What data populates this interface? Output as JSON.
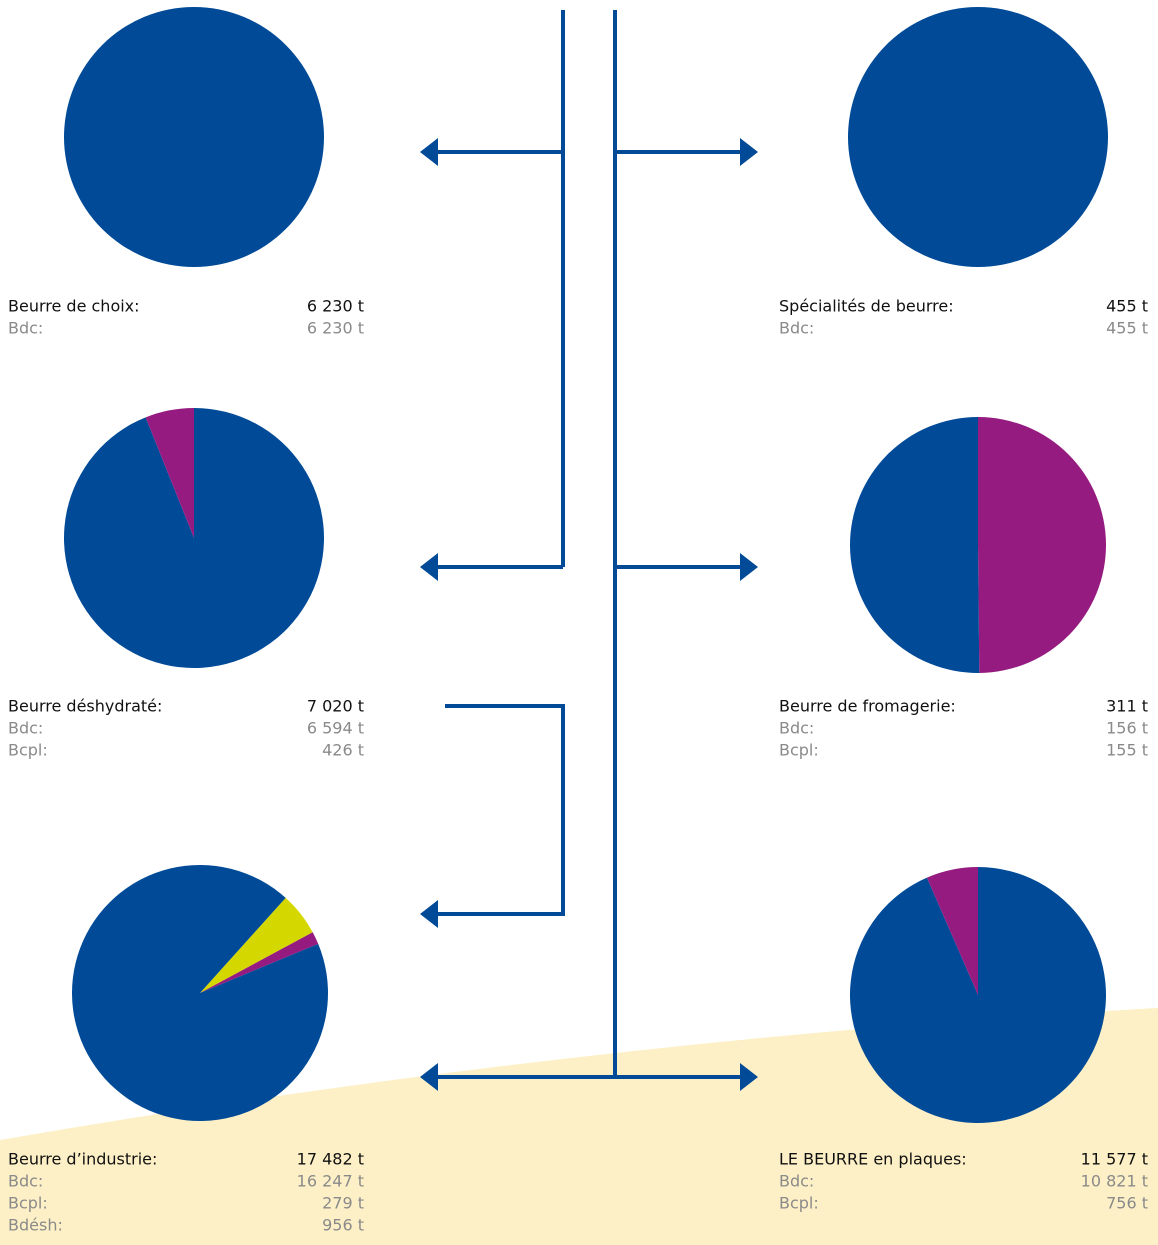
{
  "chart_data": [
    {
      "type": "pie",
      "title": "Beurre de choix:",
      "total": {
        "value": 6230,
        "label": "6 230 t"
      },
      "categories": [
        "Bdc:"
      ],
      "values": [
        6230
      ],
      "value_labels": [
        "6 230 t"
      ],
      "colors": [
        "#004a97"
      ]
    },
    {
      "type": "pie",
      "title": "Spécialités de beurre:",
      "total": {
        "value": 455,
        "label": "455 t"
      },
      "categories": [
        "Bdc:"
      ],
      "values": [
        455
      ],
      "value_labels": [
        "455 t"
      ],
      "colors": [
        "#004a97"
      ]
    },
    {
      "type": "pie",
      "title": "Beurre déshydraté:",
      "total": {
        "value": 7020,
        "label": "7 020 t"
      },
      "categories": [
        "Bdc:",
        "Bcpl:"
      ],
      "values": [
        6594,
        426
      ],
      "value_labels": [
        "6 594 t",
        "426 t"
      ],
      "colors": [
        "#004a97",
        "#951b81"
      ]
    },
    {
      "type": "pie",
      "title": "Beurre de fromagerie:",
      "total": {
        "value": 311,
        "label": "311 t"
      },
      "categories": [
        "Bdc:",
        "Bcpl:"
      ],
      "values": [
        156,
        155
      ],
      "value_labels": [
        "156 t",
        "155 t"
      ],
      "colors": [
        "#004a97",
        "#951b81"
      ]
    },
    {
      "type": "pie",
      "title": "Beurre d’industrie:",
      "total": {
        "value": 17482,
        "label": "17 482 t"
      },
      "categories": [
        "Bdc:",
        "Bcpl:",
        "Bdésh:"
      ],
      "values": [
        16247,
        279,
        956
      ],
      "value_labels": [
        "16 247 t",
        "279 t",
        "956 t"
      ],
      "colors": [
        "#004a97",
        "#951b81",
        "#d4d800"
      ]
    },
    {
      "type": "pie",
      "title": "LE BEURRE en plaques:",
      "total": {
        "value": 11577,
        "label": "11 577 t"
      },
      "categories": [
        "Bdc:",
        "Bcpl:"
      ],
      "values": [
        10821,
        756
      ],
      "value_labels": [
        "10 821 t",
        "756 t"
      ],
      "colors": [
        "#004a97",
        "#951b81"
      ]
    }
  ]
}
